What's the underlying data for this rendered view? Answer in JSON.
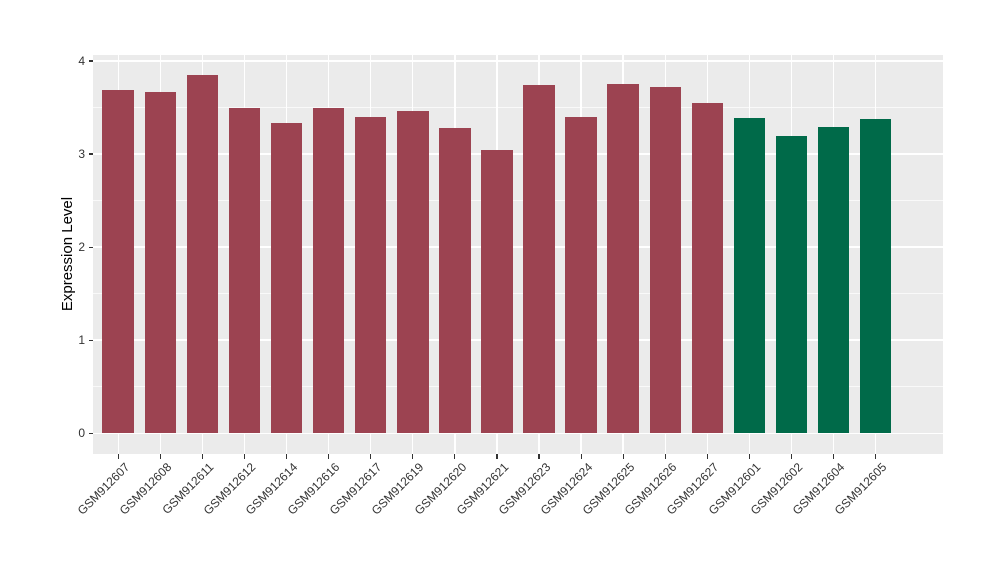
{
  "chart_data": {
    "type": "bar",
    "title": "",
    "xlabel": "",
    "ylabel": "Expression Level",
    "categories": [
      "GSM912607",
      "GSM912608",
      "GSM912611",
      "GSM912612",
      "GSM912614",
      "GSM912616",
      "GSM912617",
      "GSM912619",
      "GSM912620",
      "GSM912621",
      "GSM912623",
      "GSM912624",
      "GSM912625",
      "GSM912626",
      "GSM912627",
      "GSM912601",
      "GSM912602",
      "GSM912604",
      "GSM912605"
    ],
    "values": [
      3.69,
      3.67,
      3.85,
      3.5,
      3.33,
      3.49,
      3.4,
      3.46,
      3.28,
      3.04,
      3.74,
      3.4,
      3.75,
      3.72,
      3.55,
      3.39,
      3.19,
      3.29,
      3.38
    ],
    "bar_colors": [
      "#9C4351",
      "#9C4351",
      "#9C4351",
      "#9C4351",
      "#9C4351",
      "#9C4351",
      "#9C4351",
      "#9C4351",
      "#9C4351",
      "#9C4351",
      "#9C4351",
      "#9C4351",
      "#9C4351",
      "#9C4351",
      "#9C4351",
      "#006A49",
      "#006A49",
      "#006A49",
      "#006A49"
    ],
    "group_palette": {
      "red_group": "#9C4351",
      "green_group": "#006A49"
    },
    "yticks": [
      0,
      1,
      2,
      3,
      4
    ],
    "y_minor_breaks": [
      0.5,
      1.5,
      2.5,
      3.5
    ],
    "ylim": [
      -0.22,
      4.07
    ],
    "x_tick_rotation_deg": 45,
    "grid": "on",
    "legend_position": "none",
    "panel_background": "#EBEBEB",
    "grid_major_color": "#FFFFFF",
    "grid_minor_color": "rgba(255,255,255,0.7)",
    "tick_color": "#333333",
    "axis_text_color": "#333333"
  }
}
